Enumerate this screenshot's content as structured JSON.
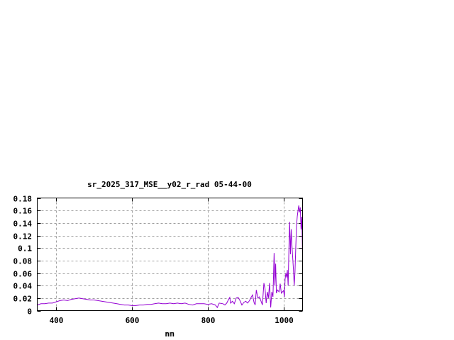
{
  "chart_data": {
    "type": "line",
    "title": "sr_2025_317_MSE__y02_r_rad 05-44-00",
    "xlabel": "nm",
    "ylabel": "",
    "xlim": [
      350,
      1050
    ],
    "ylim": [
      0,
      0.18
    ],
    "xticks": [
      400,
      600,
      800,
      1000
    ],
    "xtick_labels": [
      "400",
      "600",
      "800",
      "1000"
    ],
    "yticks": [
      0,
      0.02,
      0.04,
      0.06,
      0.08,
      0.1,
      0.12,
      0.14,
      0.16,
      0.18
    ],
    "ytick_labels": [
      "0",
      "0.02",
      "0.04",
      "0.06",
      "0.08",
      "0.1",
      "0.12",
      "0.14",
      "0.16",
      "0.18"
    ],
    "grid": true,
    "legend": "none",
    "line_color": "#9400d3",
    "series": [
      {
        "x": [
          350,
          360,
          370,
          380,
          390,
          400,
          410,
          420,
          430,
          440,
          450,
          460,
          470,
          480,
          490,
          500,
          510,
          520,
          530,
          540,
          550,
          560,
          570,
          580,
          590,
          600,
          610,
          620,
          630,
          640,
          650,
          660,
          670,
          680,
          690,
          700,
          710,
          720,
          730,
          740,
          750,
          760,
          770,
          780,
          790,
          800,
          810,
          820,
          825,
          830,
          840,
          845,
          850,
          855,
          858,
          860,
          865,
          870,
          875,
          880,
          885,
          890,
          895,
          900,
          905,
          910,
          915,
          918,
          922,
          925,
          928,
          932,
          936,
          940,
          944,
          948,
          951,
          954,
          957,
          960,
          963,
          966,
          969,
          972,
          975,
          977,
          979,
          981,
          984,
          988,
          991,
          994,
          997,
          1000,
          1002,
          1004,
          1006,
          1008,
          1010,
          1012,
          1014,
          1016,
          1018,
          1020,
          1022,
          1024,
          1026,
          1028,
          1030,
          1032,
          1034,
          1036,
          1038,
          1040,
          1042,
          1044,
          1046,
          1048,
          1050
        ],
        "y": [
          0.009,
          0.011,
          0.011,
          0.012,
          0.012,
          0.014,
          0.016,
          0.017,
          0.016,
          0.018,
          0.019,
          0.02,
          0.019,
          0.018,
          0.017,
          0.017,
          0.016,
          0.015,
          0.014,
          0.013,
          0.012,
          0.011,
          0.01,
          0.009,
          0.009,
          0.008,
          0.008,
          0.009,
          0.009,
          0.01,
          0.01,
          0.011,
          0.012,
          0.011,
          0.011,
          0.012,
          0.011,
          0.012,
          0.011,
          0.012,
          0.01,
          0.009,
          0.011,
          0.011,
          0.011,
          0.01,
          0.011,
          0.009,
          0.005,
          0.012,
          0.011,
          0.009,
          0.012,
          0.018,
          0.021,
          0.012,
          0.015,
          0.011,
          0.02,
          0.021,
          0.016,
          0.009,
          0.013,
          0.015,
          0.012,
          0.016,
          0.022,
          0.025,
          0.013,
          0.009,
          0.033,
          0.02,
          0.022,
          0.016,
          0.009,
          0.044,
          0.035,
          0.012,
          0.03,
          0.02,
          0.044,
          0.005,
          0.03,
          0.022,
          0.092,
          0.04,
          0.075,
          0.028,
          0.033,
          0.03,
          0.043,
          0.028,
          0.03,
          0.032,
          0.022,
          0.05,
          0.06,
          0.053,
          0.065,
          0.04,
          0.1,
          0.142,
          0.09,
          0.13,
          0.105,
          0.085,
          0.065,
          0.04,
          0.06,
          0.1,
          0.135,
          0.15,
          0.16,
          0.168,
          0.157,
          0.165,
          0.13,
          0.15,
          0.087
        ]
      }
    ]
  }
}
